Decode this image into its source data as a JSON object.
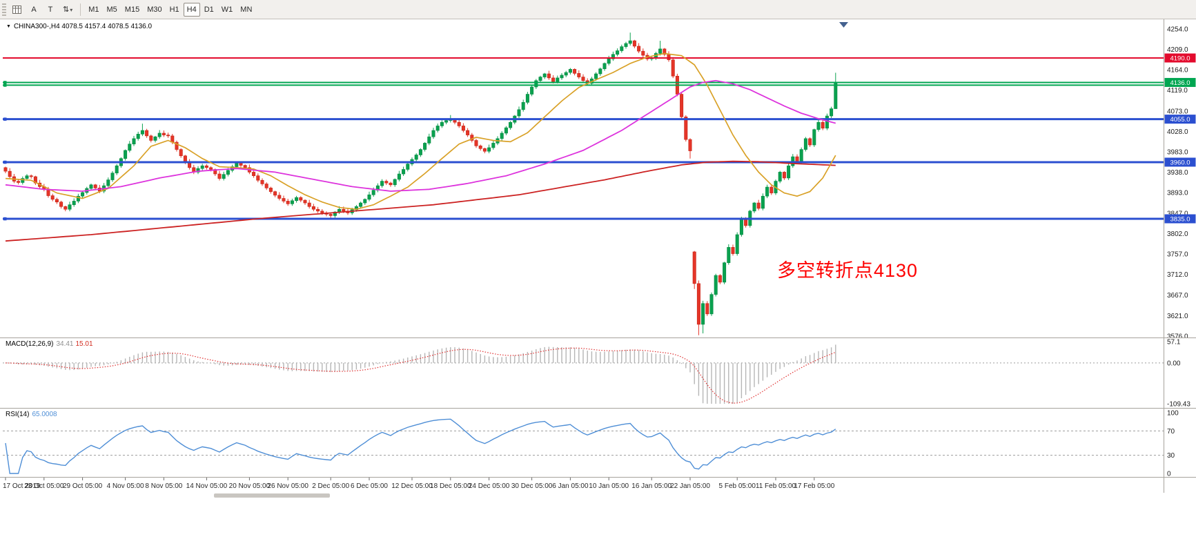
{
  "toolbar": {
    "a_label": "A",
    "t_label": "T",
    "updown_icon": "⇅",
    "caret_icon": "▾",
    "timeframes": [
      {
        "label": "M1",
        "active": false
      },
      {
        "label": "M5",
        "active": false
      },
      {
        "label": "M15",
        "active": false
      },
      {
        "label": "M30",
        "active": false
      },
      {
        "label": "H1",
        "active": false
      },
      {
        "label": "H4",
        "active": true
      },
      {
        "label": "D1",
        "active": false
      },
      {
        "label": "W1",
        "active": false
      },
      {
        "label": "MN",
        "active": false
      }
    ]
  },
  "chart_data": {
    "type": "candlestick",
    "symbol": "CHINA300-",
    "timeframe": "H4",
    "header": "CHINA300-,H4  4078.5 4157.4 4078.5 4136.0",
    "ohlc": {
      "open": "4078.5",
      "high": "4157.4",
      "low": "4078.5",
      "close": "4136.0"
    },
    "annotation": "多空转折点4130",
    "price_max": 4254.0,
    "price_min": 3576.0,
    "first_open": 3948,
    "price_axis_labels": [
      "4254.0",
      "4209.0",
      "4164.0",
      "4119.0",
      "4073.0",
      "4028.0",
      "3983.0",
      "3938.0",
      "3893.0",
      "3847.0",
      "3802.0",
      "3757.0",
      "3712.0",
      "3667.0",
      "3621.0",
      "3576.0"
    ],
    "levels": [
      {
        "price": 4190.0,
        "color": "#e30b2d",
        "width": 2,
        "badge": "4190.0",
        "handle": false
      },
      {
        "price": 4136.0,
        "color": "#00a651",
        "width": 2,
        "badge": "4136.0",
        "handle": true
      },
      {
        "price": 4130.0,
        "color": "#00a651",
        "width": 2,
        "badge": null,
        "handle": true
      },
      {
        "price": 4055.0,
        "color": "#2b4fd0",
        "width": 3,
        "badge": "4055.0",
        "handle": true
      },
      {
        "price": 3960.0,
        "color": "#2b4fd0",
        "width": 3,
        "badge": "3960.0",
        "handle": true
      },
      {
        "price": 3835.0,
        "color": "#2b4fd0",
        "width": 3,
        "badge": "3835.0",
        "handle": true
      }
    ],
    "colors": {
      "up": "#0aa14f",
      "up_stroke": "#078a42",
      "down": "#e53528",
      "down_stroke": "#c52415",
      "ma_red": "#cc2222",
      "ma_magenta": "#dd33dd",
      "ma_orange": "#d9a127",
      "macd_bar": "#b5b5b5",
      "macd_signal": "#e03131",
      "rsi_line": "#4e8ed6",
      "axis_line": "#a6a29c",
      "grid_dotted": "#9c9c9c",
      "shift_marker": "#44618f"
    },
    "closes": [
      3940,
      3928,
      3918,
      3915,
      3924,
      3930,
      3928,
      3914,
      3906,
      3900,
      3886,
      3878,
      3872,
      3862,
      3856,
      3866,
      3874,
      3885,
      3893,
      3902,
      3910,
      3903,
      3896,
      3908,
      3921,
      3936,
      3952,
      3968,
      3986,
      4000,
      4012,
      4022,
      4030,
      4018,
      4008,
      4016,
      4024,
      4020,
      4018,
      4004,
      3988,
      3974,
      3960,
      3948,
      3938,
      3946,
      3952,
      3948,
      3944,
      3934,
      3924,
      3933,
      3942,
      3950,
      3958,
      3953,
      3948,
      3938,
      3930,
      3920,
      3912,
      3903,
      3895,
      3887,
      3880,
      3874,
      3868,
      3875,
      3882,
      3876,
      3870,
      3862,
      3856,
      3852,
      3848,
      3845,
      3842,
      3850,
      3856,
      3852,
      3848,
      3855,
      3862,
      3870,
      3878,
      3888,
      3898,
      3908,
      3918,
      3914,
      3910,
      3922,
      3934,
      3944,
      3956,
      3966,
      3976,
      3988,
      4002,
      4016,
      4030,
      4040,
      4048,
      4052,
      4055,
      4048,
      4040,
      4030,
      4020,
      4008,
      3996,
      3990,
      3984,
      3992,
      4002,
      4012,
      4024,
      4036,
      4048,
      4062,
      4076,
      4092,
      4110,
      4126,
      4140,
      4148,
      4155,
      4146,
      4138,
      4146,
      4152,
      4158,
      4165,
      4156,
      4148,
      4140,
      4134,
      4144,
      4155,
      4166,
      4178,
      4188,
      4198,
      4206,
      4215,
      4222,
      4228,
      4216,
      4205,
      4196,
      4188,
      4190,
      4200,
      4210,
      4198,
      4186,
      4150,
      4110,
      4060,
      4010,
      3985,
      3692,
      3602,
      3648,
      3625,
      3668,
      3710,
      3695,
      3738,
      3772,
      3758,
      3800,
      3835,
      3820,
      3852,
      3870,
      3858,
      3885,
      3905,
      3892,
      3918,
      3938,
      3925,
      3952,
      3972,
      3960,
      3988,
      4012,
      3998,
      4032,
      4048,
      4035,
      4062,
      4078,
      4136
    ],
    "overrides": {
      "32": {
        "high": 4045
      },
      "104": {
        "high": 4064
      },
      "146": {
        "high": 4246
      },
      "153": {
        "high": 4228
      },
      "160": {
        "low": 3968
      },
      "161": {
        "open": 3762,
        "low": 3680
      },
      "162": {
        "low": 3578
      },
      "163": {
        "low": 3582
      },
      "194": {
        "high": 4157.4,
        "low": 4078.5
      }
    },
    "ma": {
      "orange": [
        [
          0,
          3924
        ],
        [
          6,
          3920
        ],
        [
          12,
          3892
        ],
        [
          18,
          3880
        ],
        [
          24,
          3902
        ],
        [
          30,
          3952
        ],
        [
          34,
          3995
        ],
        [
          38,
          4008
        ],
        [
          42,
          3992
        ],
        [
          46,
          3968
        ],
        [
          50,
          3950
        ],
        [
          54,
          3948
        ],
        [
          58,
          3945
        ],
        [
          62,
          3930
        ],
        [
          66,
          3908
        ],
        [
          70,
          3888
        ],
        [
          74,
          3872
        ],
        [
          78,
          3860
        ],
        [
          82,
          3856
        ],
        [
          86,
          3866
        ],
        [
          90,
          3885
        ],
        [
          94,
          3905
        ],
        [
          98,
          3935
        ],
        [
          102,
          3968
        ],
        [
          106,
          4000
        ],
        [
          110,
          4015
        ],
        [
          114,
          4008
        ],
        [
          118,
          4005
        ],
        [
          122,
          4025
        ],
        [
          126,
          4060
        ],
        [
          130,
          4095
        ],
        [
          134,
          4125
        ],
        [
          138,
          4142
        ],
        [
          142,
          4158
        ],
        [
          146,
          4178
        ],
        [
          150,
          4192
        ],
        [
          154,
          4200
        ],
        [
          158,
          4195
        ],
        [
          161,
          4175
        ],
        [
          164,
          4130
        ],
        [
          167,
          4075
        ],
        [
          170,
          4020
        ],
        [
          173,
          3975
        ],
        [
          176,
          3938
        ],
        [
          179,
          3910
        ],
        [
          182,
          3892
        ],
        [
          185,
          3885
        ],
        [
          188,
          3895
        ],
        [
          191,
          3925
        ],
        [
          194,
          3975
        ]
      ],
      "magenta": [
        [
          0,
          3910
        ],
        [
          9,
          3900
        ],
        [
          18,
          3896
        ],
        [
          27,
          3906
        ],
        [
          36,
          3925
        ],
        [
          45,
          3940
        ],
        [
          54,
          3946
        ],
        [
          63,
          3938
        ],
        [
          72,
          3922
        ],
        [
          81,
          3906
        ],
        [
          90,
          3896
        ],
        [
          99,
          3900
        ],
        [
          108,
          3913
        ],
        [
          117,
          3930
        ],
        [
          126,
          3956
        ],
        [
          135,
          3986
        ],
        [
          144,
          4030
        ],
        [
          151,
          4072
        ],
        [
          156,
          4102
        ],
        [
          160,
          4126
        ],
        [
          163,
          4136
        ],
        [
          166,
          4140
        ],
        [
          170,
          4133
        ],
        [
          174,
          4120
        ],
        [
          178,
          4102
        ],
        [
          182,
          4084
        ],
        [
          186,
          4068
        ],
        [
          190,
          4056
        ],
        [
          194,
          4046
        ]
      ],
      "red": [
        [
          0,
          3786
        ],
        [
          20,
          3800
        ],
        [
          40,
          3818
        ],
        [
          60,
          3836
        ],
        [
          80,
          3851
        ],
        [
          100,
          3866
        ],
        [
          120,
          3888
        ],
        [
          140,
          3921
        ],
        [
          150,
          3940
        ],
        [
          158,
          3954
        ],
        [
          164,
          3960
        ],
        [
          170,
          3962
        ],
        [
          176,
          3961
        ],
        [
          184,
          3957
        ],
        [
          194,
          3953
        ]
      ]
    },
    "time_labels": [
      {
        "i": 0,
        "t": "17 Oct 2019"
      },
      {
        "i": 9,
        "t": "23 Oct 05:00"
      },
      {
        "i": 18,
        "t": "29 Oct 05:00"
      },
      {
        "i": 28,
        "t": "4 Nov 05:00"
      },
      {
        "i": 37,
        "t": "8 Nov 05:00"
      },
      {
        "i": 47,
        "t": "14 Nov 05:00"
      },
      {
        "i": 57,
        "t": "20 Nov 05:00"
      },
      {
        "i": 66,
        "t": "26 Nov 05:00"
      },
      {
        "i": 76,
        "t": "2 Dec 05:00"
      },
      {
        "i": 85,
        "t": "6 Dec 05:00"
      },
      {
        "i": 95,
        "t": "12 Dec 05:00"
      },
      {
        "i": 104,
        "t": "18 Dec 05:00"
      },
      {
        "i": 113,
        "t": "24 Dec 05:00"
      },
      {
        "i": 123,
        "t": "30 Dec 05:00"
      },
      {
        "i": 132,
        "t": "6 Jan 05:00"
      },
      {
        "i": 141,
        "t": "10 Jan 05:00"
      },
      {
        "i": 151,
        "t": "16 Jan 05:00"
      },
      {
        "i": 160,
        "t": "22 Jan 05:00"
      },
      {
        "i": 171,
        "t": "5 Feb 05:00"
      },
      {
        "i": 180,
        "t": "11 Feb 05:00"
      },
      {
        "i": 189,
        "t": "17 Feb 05:00"
      }
    ]
  },
  "macd": {
    "title": "MACD(12,26,9)",
    "value": "34.41",
    "signal": "15.01",
    "params": {
      "fast": 12,
      "slow": 26,
      "smooth": 9
    },
    "axis": [
      {
        "label": "57.1",
        "v": 57.1
      },
      {
        "label": "0.00",
        "v": 0
      },
      {
        "label": "-109.43",
        "v": -109.43
      }
    ]
  },
  "rsi": {
    "title": "RSI(14)",
    "value": "65.0008",
    "period": 14,
    "axis": [
      {
        "label": "100",
        "v": 100,
        "dashed": false
      },
      {
        "label": "70",
        "v": 70,
        "dashed": true
      },
      {
        "label": "30",
        "v": 30,
        "dashed": true
      },
      {
        "label": "0",
        "v": 0,
        "dashed": false
      }
    ]
  }
}
